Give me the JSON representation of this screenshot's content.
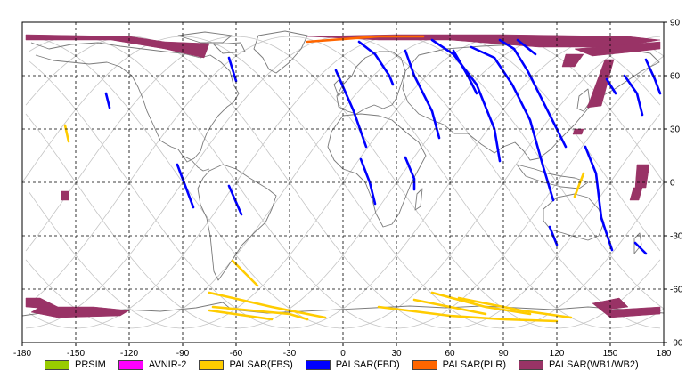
{
  "chart_data": {
    "type": "map",
    "x_ticks": [
      -180,
      -150,
      -120,
      -90,
      -60,
      -30,
      0,
      30,
      60,
      90,
      120,
      150,
      180
    ],
    "y_ticks": [
      90,
      60,
      30,
      0,
      -30,
      -60,
      -90
    ],
    "xlim": [
      -180,
      180
    ],
    "ylim": [
      -90,
      90
    ],
    "grid": true,
    "legend_position": "bottom",
    "legend": [
      {
        "name": "PRSIM",
        "color": "#99cc00"
      },
      {
        "name": "AVNIR-2",
        "color": "#ff00ff"
      },
      {
        "name": "PALSAR(FBS)",
        "color": "#ffcc00"
      },
      {
        "name": "PALSAR(FBD)",
        "color": "#0000ff"
      },
      {
        "name": "PALSAR(PLR)",
        "color": "#ff6600"
      },
      {
        "name": "PALSAR(WB1/WB2)",
        "color": "#993366"
      }
    ],
    "series": [
      {
        "name": "PALSAR(WB1/WB2)",
        "color": "#993366",
        "regions": [
          [
            [
              -178,
              83
            ],
            [
              -120,
              82
            ],
            [
              -100,
              79
            ],
            [
              -75,
              78
            ],
            [
              -78,
              70
            ],
            [
              -100,
              75
            ],
            [
              -130,
              80
            ],
            [
              -178,
              80
            ]
          ],
          [
            [
              -20,
              82
            ],
            [
              30,
              83
            ],
            [
              90,
              83
            ],
            [
              160,
              82
            ],
            [
              178,
              80
            ],
            [
              160,
              77
            ],
            [
              140,
              76
            ],
            [
              110,
              76
            ],
            [
              60,
              80
            ],
            [
              20,
              80
            ]
          ],
          [
            [
              130,
              75
            ],
            [
              178,
              79
            ],
            [
              178,
              75
            ],
            [
              160,
              73
            ],
            [
              140,
              71
            ]
          ],
          [
            [
              147,
              69
            ],
            [
              152,
              69
            ],
            [
              145,
              43
            ],
            [
              137,
              42
            ]
          ],
          [
            [
              125,
              72
            ],
            [
              135,
              72
            ],
            [
              130,
              65
            ],
            [
              123,
              65
            ]
          ],
          [
            [
              130,
              30
            ],
            [
              135,
              30
            ],
            [
              134,
              27
            ],
            [
              129,
              27
            ]
          ],
          [
            [
              165,
              10
            ],
            [
              172,
              10
            ],
            [
              170,
              -3
            ],
            [
              164,
              -3
            ]
          ],
          [
            [
              163,
              -3
            ],
            [
              168,
              -3
            ],
            [
              166,
              -10
            ],
            [
              161,
              -10
            ]
          ],
          [
            [
              -158,
              -5
            ],
            [
              -154,
              -5
            ],
            [
              -154,
              -10
            ],
            [
              -158,
              -10
            ]
          ],
          [
            [
              -178,
              -65
            ],
            [
              -170,
              -65
            ],
            [
              -160,
              -70
            ],
            [
              -166,
              -71
            ],
            [
              -178,
              -70
            ]
          ],
          [
            [
              -170,
              -70
            ],
            [
              -140,
              -70
            ],
            [
              -120,
              -72
            ],
            [
              -125,
              -75
            ],
            [
              -160,
              -76
            ],
            [
              -175,
              -73
            ]
          ],
          [
            [
              140,
              -68
            ],
            [
              155,
              -65
            ],
            [
              160,
              -70
            ],
            [
              145,
              -72
            ]
          ],
          [
            [
              145,
              -72
            ],
            [
              178,
              -70
            ],
            [
              178,
              -74
            ],
            [
              150,
              -76
            ]
          ]
        ],
        "swaths": []
      },
      {
        "name": "PALSAR(FBD)",
        "color": "#0000ff",
        "regions": [],
        "swaths": [
          [
            [
              -64,
              70
            ],
            [
              -60,
              57
            ]
          ],
          [
            [
              -133,
              50
            ],
            [
              -131,
              42
            ]
          ],
          [
            [
              -93,
              10
            ],
            [
              -84,
              -14
            ]
          ],
          [
            [
              -64,
              -2
            ],
            [
              -57,
              -18
            ]
          ],
          [
            [
              -4,
              63
            ],
            [
              6,
              40
            ],
            [
              13,
              20
            ]
          ],
          [
            [
              9,
              79
            ],
            [
              18,
              72
            ],
            [
              26,
              60
            ],
            [
              28,
              55
            ]
          ],
          [
            [
              10,
              13
            ],
            [
              15,
              0
            ],
            [
              18,
              -12
            ]
          ],
          [
            [
              35,
              74
            ],
            [
              40,
              60
            ],
            [
              50,
              40
            ],
            [
              54,
              25
            ]
          ],
          [
            [
              35,
              14
            ],
            [
              40,
              2
            ],
            [
              40,
              -4
            ]
          ],
          [
            [
              50,
              80
            ],
            [
              62,
              72
            ],
            [
              75,
              55
            ],
            [
              85,
              30
            ],
            [
              88,
              12
            ]
          ],
          [
            [
              62,
              74
            ],
            [
              70,
              60
            ],
            [
              75,
              50
            ]
          ],
          [
            [
              72,
              76
            ],
            [
              85,
              70
            ],
            [
              95,
              55
            ],
            [
              105,
              35
            ],
            [
              112,
              10
            ],
            [
              118,
              -10
            ]
          ],
          [
            [
              88,
              80
            ],
            [
              96,
              75
            ],
            [
              104,
              62
            ],
            [
              116,
              38
            ],
            [
              125,
              20
            ]
          ],
          [
            [
              98,
              80
            ],
            [
              108,
              72
            ]
          ],
          [
            [
              116,
              -25
            ],
            [
              120,
              -35
            ]
          ],
          [
            [
              136,
              20
            ],
            [
              142,
              5
            ],
            [
              145,
              -20
            ],
            [
              151,
              -38
            ]
          ],
          [
            [
              158,
              60
            ],
            [
              165,
              50
            ],
            [
              168,
              38
            ]
          ],
          [
            [
              170,
              69
            ],
            [
              175,
              58
            ],
            [
              178,
              50
            ]
          ],
          [
            [
              164,
              -34
            ],
            [
              170,
              -40
            ]
          ],
          [
            [
              148,
              58
            ],
            [
              153,
              50
            ]
          ]
        ]
      },
      {
        "name": "PALSAR(FBS)",
        "color": "#ffcc00",
        "regions": [],
        "swaths": [
          [
            [
              -156,
              32
            ],
            [
              -154,
              23
            ]
          ],
          [
            [
              -62,
              -44
            ],
            [
              -48,
              -58
            ]
          ],
          [
            [
              -75,
              -62
            ],
            [
              -40,
              -70
            ],
            [
              -10,
              -76
            ]
          ],
          [
            [
              -73,
              -70
            ],
            [
              -30,
              -74
            ],
            [
              -20,
              -77
            ]
          ],
          [
            [
              -75,
              -72
            ],
            [
              -40,
              -77
            ]
          ],
          [
            [
              20,
              -70
            ],
            [
              60,
              -75
            ],
            [
              90,
              -77
            ],
            [
              120,
              -78
            ]
          ],
          [
            [
              50,
              -62
            ],
            [
              80,
              -70
            ],
            [
              105,
              -74
            ]
          ],
          [
            [
              65,
              -65
            ],
            [
              100,
              -72
            ],
            [
              128,
              -76
            ]
          ],
          [
            [
              40,
              -66
            ],
            [
              80,
              -74
            ]
          ],
          [
            [
              135,
              5
            ],
            [
              130,
              -8
            ]
          ]
        ]
      },
      {
        "name": "PALSAR(PLR)",
        "color": "#ff6600",
        "regions": [],
        "swaths": [
          [
            [
              -20,
              79
            ],
            [
              20,
              82
            ],
            [
              45,
              82
            ]
          ]
        ]
      }
    ]
  }
}
